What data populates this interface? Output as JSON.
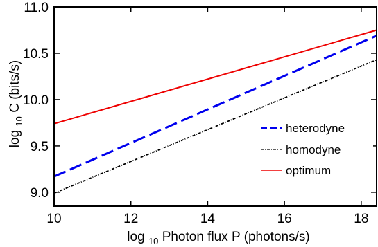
{
  "chart_data": {
    "type": "line",
    "x": [
      10,
      18.4
    ],
    "xlim": [
      10,
      18.4
    ],
    "ylim": [
      8.85,
      11.0
    ],
    "xticks": [
      10,
      12,
      14,
      16,
      18
    ],
    "yticks": [
      9.0,
      9.5,
      10.0,
      10.5,
      11.0
    ],
    "xtick_labels": [
      "10",
      "12",
      "14",
      "16",
      "18"
    ],
    "ytick_labels": [
      "9.0",
      "9.5",
      "10.0",
      "10.5",
      "11.0"
    ],
    "xlabel_parts": {
      "prefix": "log",
      "sub": "10",
      "suffix": " Photon flux P (photons/s)"
    },
    "ylabel_parts": {
      "prefix": "log",
      "sub": "10",
      "suffix": " C (bits/s)"
    },
    "grid": false,
    "legend_position": "lower-right",
    "series": [
      {
        "name": "heterodyne",
        "x": [
          10,
          18.4
        ],
        "values": [
          9.17,
          10.69
        ],
        "color": "#0000ee",
        "style": "dashed"
      },
      {
        "name": "homodyne",
        "x": [
          10,
          18.4
        ],
        "values": [
          8.99,
          10.43
        ],
        "color": "#000000",
        "style": "dashdot"
      },
      {
        "name": "optimum",
        "x": [
          10,
          18.4
        ],
        "values": [
          9.74,
          10.75
        ],
        "color": "#ee0000",
        "style": "solid"
      }
    ]
  }
}
